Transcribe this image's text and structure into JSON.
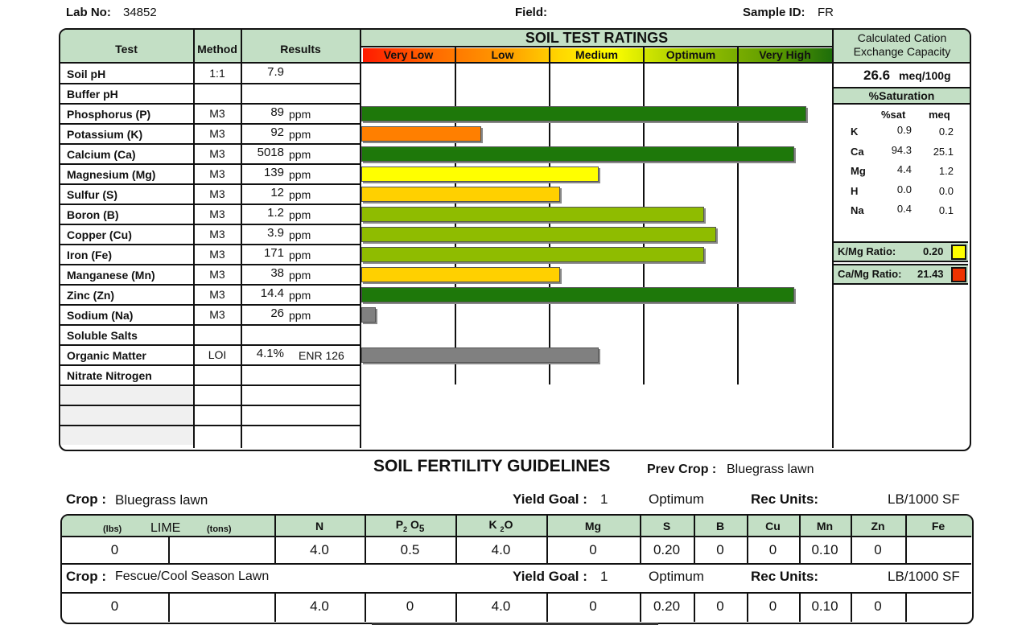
{
  "header": {
    "lab_label": "Lab No:",
    "lab_no": "34852",
    "field_label": "Field:",
    "sample_label": "Sample ID:",
    "sample_id": "FR"
  },
  "table": {
    "col_test": "Test",
    "col_method": "Method",
    "col_results": "Results",
    "ratings_title": "SOIL TEST RATINGS",
    "rating_levels": [
      "Very Low",
      "Low",
      "Medium",
      "Optimum",
      "Very High"
    ],
    "rows": [
      {
        "test": "Soil pH",
        "method": "1:1",
        "value": "7.9",
        "unit": "",
        "rating": null,
        "color": ""
      },
      {
        "test": "Buffer pH",
        "method": "",
        "value": "",
        "unit": "",
        "rating": null,
        "color": ""
      },
      {
        "test": "Phosphorus (P)",
        "method": "M3",
        "value": "89",
        "unit": "ppm",
        "rating": 4.73,
        "color": "#1e780a"
      },
      {
        "test": "Potassium (K)",
        "method": "M3",
        "value": "92",
        "unit": "ppm",
        "rating": 1.27,
        "color": "#ff7f00"
      },
      {
        "test": "Calcium (Ca)",
        "method": "M3",
        "value": "5018",
        "unit": "ppm",
        "rating": 4.6,
        "color": "#1e780a"
      },
      {
        "test": "Magnesium (Mg)",
        "method": "M3",
        "value": "139",
        "unit": "ppm",
        "rating": 2.52,
        "color": "#ffff00"
      },
      {
        "test": "Sulfur (S)",
        "method": "M3",
        "value": "12",
        "unit": "ppm",
        "rating": 2.11,
        "color": "#ffd000"
      },
      {
        "test": "Boron (B)",
        "method": "M3",
        "value": "1.2",
        "unit": "ppm",
        "rating": 3.64,
        "color": "#8fbc00"
      },
      {
        "test": "Copper (Cu)",
        "method": "M3",
        "value": "3.9",
        "unit": "ppm",
        "rating": 3.77,
        "color": "#8fbc00"
      },
      {
        "test": "Iron (Fe)",
        "method": "M3",
        "value": "171",
        "unit": "ppm",
        "rating": 3.64,
        "color": "#8fbc00"
      },
      {
        "test": "Manganese (Mn)",
        "method": "M3",
        "value": "38",
        "unit": "ppm",
        "rating": 2.11,
        "color": "#ffd000"
      },
      {
        "test": "Zinc (Zn)",
        "method": "M3",
        "value": "14.4",
        "unit": "ppm",
        "rating": 4.6,
        "color": "#1e780a"
      },
      {
        "test": "Sodium (Na)",
        "method": "M3",
        "value": "26",
        "unit": "ppm",
        "rating": 0.15,
        "color": "#808080"
      },
      {
        "test": "Soluble Salts",
        "method": "",
        "value": "",
        "unit": "",
        "rating": null,
        "color": ""
      },
      {
        "test": "Organic Matter",
        "method": "LOI",
        "value": "4.1%",
        "unit": "ENR 126",
        "rating": 2.52,
        "color": "#808080"
      },
      {
        "test": "Nitrate Nitrogen",
        "method": "",
        "value": "",
        "unit": "",
        "rating": null,
        "color": ""
      }
    ]
  },
  "cec": {
    "title1": "Calculated Cation",
    "title2": "Exchange Capacity",
    "value": "26.6",
    "unit": "meq/100g",
    "sat_title": "%Saturation",
    "col_sat": "%sat",
    "col_meq": "meq",
    "rows": [
      {
        "el": "K",
        "sat": "0.9",
        "meq": "0.2"
      },
      {
        "el": "Ca",
        "sat": "94.3",
        "meq": "25.1"
      },
      {
        "el": "Mg",
        "sat": "4.4",
        "meq": "1.2"
      },
      {
        "el": "H",
        "sat": "0.0",
        "meq": "0.0"
      },
      {
        "el": "Na",
        "sat": "0.4",
        "meq": "0.1"
      }
    ],
    "kmg_label": "K/Mg Ratio:",
    "kmg": "0.20",
    "kmg_color": "#ffff00",
    "camg_label": "Ca/Mg Ratio:",
    "camg": "21.43",
    "camg_color": "#ee3300"
  },
  "guidelines": {
    "title": "SOIL FERTILITY GUIDELINES",
    "prev_label": "Prev Crop :",
    "prev_crop": "Bluegrass lawn",
    "cols": {
      "lbs": "(lbs)",
      "lime": "LIME",
      "tons": "(tons)",
      "n": "N",
      "p": "P",
      "p2": "2",
      "po": "O",
      "p5": "5",
      "k": "K",
      "k2": "2",
      "ko": "O",
      "others": [
        "Mg",
        "S",
        "B",
        "Cu",
        "Mn",
        "Zn",
        "Fe"
      ]
    },
    "crops": [
      {
        "label": "Crop :",
        "crop": "Bluegrass lawn",
        "yg_label": "Yield Goal :",
        "yg": "1",
        "level": "Optimum",
        "ru_label": "Rec Units:",
        "units": "LB/1000 SF",
        "values": [
          "0",
          "",
          "4.0",
          "0.5",
          "4.0",
          "0",
          "0.20",
          "0",
          "0",
          "0.10",
          "0",
          ""
        ]
      },
      {
        "label": "Crop :",
        "crop": "Fescue/Cool Season Lawn",
        "yg_label": "Yield Goal :",
        "yg": "1",
        "level": "Optimum",
        "ru_label": "Rec Units:",
        "units": "LB/1000 SF",
        "values": [
          "0",
          "",
          "4.0",
          "0",
          "4.0",
          "0",
          "0.20",
          "0",
          "0",
          "0.10",
          "0",
          ""
        ]
      }
    ]
  }
}
